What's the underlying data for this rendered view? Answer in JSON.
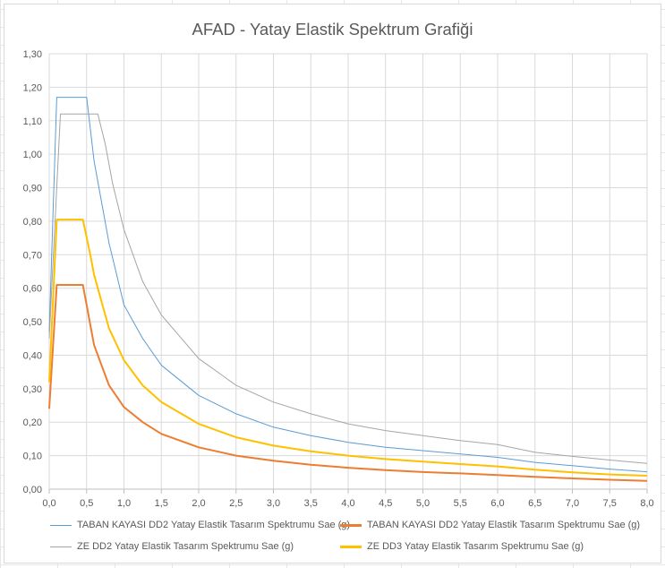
{
  "chart_data": {
    "type": "line",
    "title": "AFAD - Yatay Elastik Spektrum Grafiği",
    "xlabel": "",
    "ylabel": "",
    "xlim": [
      0,
      8
    ],
    "ylim": [
      0,
      1.3
    ],
    "x_ticks": [
      "0,0",
      "0,5",
      "1,0",
      "1,5",
      "2,0",
      "2,5",
      "3,0",
      "3,5",
      "4,0",
      "4,5",
      "5,0",
      "5,5",
      "6,0",
      "6,5",
      "7,0",
      "7,5",
      "8,0"
    ],
    "y_ticks": [
      "0,00",
      "0,10",
      "0,20",
      "0,30",
      "0,40",
      "0,50",
      "0,60",
      "0,70",
      "0,80",
      "0,90",
      "1,00",
      "1,10",
      "1,20",
      "1,30"
    ],
    "grid": true,
    "legend_position": "bottom",
    "series": [
      {
        "name": "TABAN KAYASI DD2  Yatay Elastik Tasarım Spektrumu Sae (g)",
        "color": "#5b9bd5",
        "line_width": 1,
        "x": [
          0,
          0.1,
          0.2,
          0.3,
          0.4,
          0.5,
          0.6,
          0.8,
          1.0,
          1.25,
          1.5,
          2.0,
          2.5,
          3.0,
          3.5,
          4.0,
          4.5,
          5.0,
          5.5,
          6.0,
          6.5,
          7.0,
          7.5,
          8.0
        ],
        "y": [
          0.47,
          1.17,
          1.17,
          1.17,
          1.17,
          1.17,
          0.98,
          0.735,
          0.55,
          0.45,
          0.37,
          0.28,
          0.225,
          0.185,
          0.16,
          0.14,
          0.125,
          0.115,
          0.105,
          0.095,
          0.08,
          0.07,
          0.06,
          0.052
        ]
      },
      {
        "name": "TABAN KAYASI DD2  Yatay Elastik Tasarım Spektrumu Sae (g)",
        "color": "#ed7d31",
        "line_width": 2,
        "x": [
          0,
          0.1,
          0.2,
          0.3,
          0.35,
          0.45,
          0.5,
          0.6,
          0.8,
          1.0,
          1.25,
          1.5,
          2.0,
          2.5,
          3.0,
          3.5,
          4.0,
          4.5,
          5.0,
          5.5,
          6.0,
          6.5,
          7.0,
          7.5,
          8.0
        ],
        "y": [
          0.24,
          0.61,
          0.61,
          0.61,
          0.61,
          0.61,
          0.55,
          0.43,
          0.31,
          0.245,
          0.2,
          0.165,
          0.125,
          0.1,
          0.085,
          0.073,
          0.064,
          0.057,
          0.051,
          0.047,
          0.042,
          0.037,
          0.032,
          0.028,
          0.025
        ]
      },
      {
        "name": "ZE DD2 Yatay Elastik Tasarım Spektrumu Sae (g)",
        "color": "#a5a5a5",
        "line_width": 1,
        "x": [
          0,
          0.15,
          0.3,
          0.5,
          0.65,
          0.75,
          0.85,
          1.0,
          1.25,
          1.5,
          2.0,
          2.5,
          3.0,
          3.5,
          4.0,
          4.5,
          5.0,
          5.5,
          6.0,
          6.5,
          7.0,
          7.5,
          8.0
        ],
        "y": [
          0.45,
          1.12,
          1.12,
          1.12,
          1.12,
          1.03,
          0.91,
          0.775,
          0.62,
          0.52,
          0.39,
          0.31,
          0.26,
          0.225,
          0.195,
          0.175,
          0.16,
          0.145,
          0.133,
          0.11,
          0.098,
          0.087,
          0.077
        ]
      },
      {
        "name": "ZE DD3 Yatay Elastik Tasarım Spektrumu Sae (g)",
        "color": "#ffc000",
        "line_width": 2,
        "x": [
          0,
          0.1,
          0.2,
          0.3,
          0.45,
          0.55,
          0.6,
          0.8,
          1.0,
          1.25,
          1.5,
          2.0,
          2.5,
          3.0,
          3.5,
          4.0,
          4.5,
          5.0,
          5.5,
          6.0,
          6.5,
          7.0,
          7.5,
          8.0
        ],
        "y": [
          0.32,
          0.805,
          0.805,
          0.805,
          0.805,
          0.7,
          0.64,
          0.48,
          0.385,
          0.31,
          0.26,
          0.195,
          0.155,
          0.13,
          0.113,
          0.1,
          0.09,
          0.082,
          0.075,
          0.068,
          0.058,
          0.05,
          0.044,
          0.04
        ]
      }
    ]
  }
}
